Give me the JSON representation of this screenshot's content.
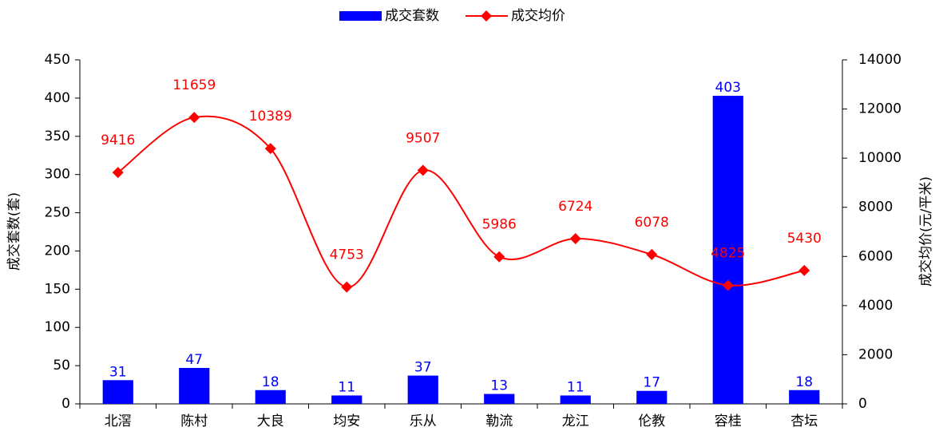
{
  "chart_data": {
    "type": "bar",
    "categories": [
      "北滘",
      "陈村",
      "大良",
      "均安",
      "乐从",
      "勒流",
      "龙江",
      "伦教",
      "容桂",
      "杏坛"
    ],
    "series": [
      {
        "name": "成交套数",
        "type": "bar",
        "color": "#0000ff",
        "values": [
          31,
          47,
          18,
          11,
          37,
          13,
          11,
          17,
          403,
          18
        ]
      },
      {
        "name": "成交均价",
        "type": "line",
        "axis": "y2",
        "color": "#ff0000",
        "values": [
          9416,
          11659,
          10389,
          4753,
          9507,
          5986,
          6724,
          6078,
          4825,
          5430
        ]
      }
    ],
    "ylabel": "成交套数(套)",
    "y2label": "成交均价(元/平米)",
    "ylim": [
      0,
      450
    ],
    "yticks": [
      0,
      50,
      100,
      150,
      200,
      250,
      300,
      350,
      400,
      450
    ],
    "y2lim": [
      0,
      14000
    ],
    "y2ticks": [
      0,
      2000,
      4000,
      6000,
      8000,
      10000,
      12000,
      14000
    ],
    "legend": "top"
  }
}
